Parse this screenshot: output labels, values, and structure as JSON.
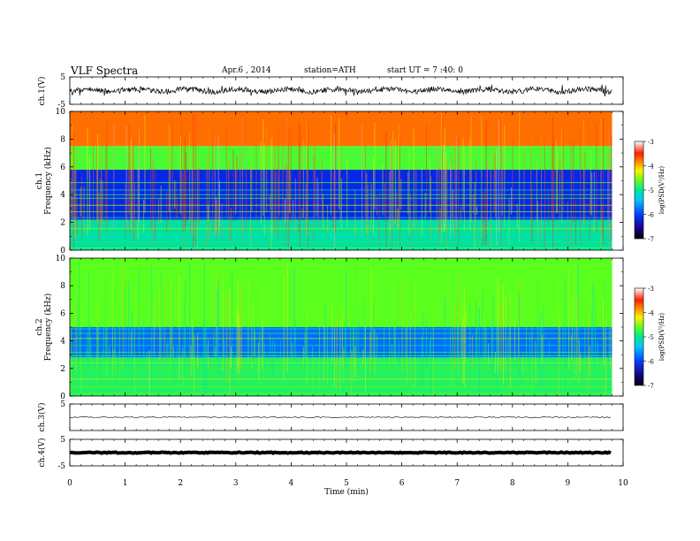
{
  "header": {
    "title": "VLF  Spectra",
    "date": "Apr.6  , 2014",
    "station": "station=ATH",
    "start": "start  UT  =   7 :40: 0"
  },
  "chart_data": [
    {
      "type": "line",
      "panel": "ch1-waveform",
      "ylabel": "ch.1(V)",
      "ylim": [
        -5,
        5
      ],
      "yticks": [
        "5",
        "-5"
      ],
      "x_range_min": [
        0,
        9.8
      ],
      "trace_level_v": 0.1
    },
    {
      "type": "heatmap",
      "panel": "ch1-spectrogram",
      "ylabel_channel": "ch.1",
      "ylabel": "Frequency  (kHz)",
      "ylim": [
        0,
        10
      ],
      "yticks": [
        "0",
        "2",
        "4",
        "6",
        "8",
        "10"
      ],
      "colorbar": {
        "label": "log(PSD(V²/Hz)",
        "range": [
          -7,
          -3
        ],
        "ticks": [
          "-3",
          "-4",
          "-5",
          "-6",
          "-7"
        ]
      },
      "bands": [
        {
          "from_khz": 0,
          "to_khz": 2.2,
          "log_psd": -5.6
        },
        {
          "from_khz": 2.2,
          "to_khz": 5.8,
          "log_psd": -6.6
        },
        {
          "from_khz": 5.8,
          "to_khz": 7.5,
          "log_psd": -5.1
        },
        {
          "from_khz": 7.5,
          "to_khz": 10,
          "log_psd": -3.9
        }
      ]
    },
    {
      "type": "heatmap",
      "panel": "ch2-spectrogram",
      "ylabel_channel": "ch.2",
      "ylabel": "Frequency  (kHz)",
      "ylim": [
        0,
        10
      ],
      "yticks": [
        "0",
        "2",
        "4",
        "6",
        "8",
        "10"
      ],
      "colorbar": {
        "label": "log(PSD(V²/Hz)",
        "range": [
          -7,
          -3
        ],
        "ticks": [
          "-3",
          "-4",
          "-5",
          "-6",
          "-7"
        ]
      },
      "bands": [
        {
          "from_khz": 0,
          "to_khz": 2.8,
          "log_psd": -5.3
        },
        {
          "from_khz": 2.8,
          "to_khz": 5.0,
          "log_psd": -6.3
        },
        {
          "from_khz": 5.0,
          "to_khz": 10,
          "log_psd": -5.0
        }
      ]
    },
    {
      "type": "line",
      "panel": "ch3-waveform",
      "ylabel": "ch.3(V)",
      "ylim": [
        -5,
        5
      ],
      "yticks": [
        "5"
      ],
      "trace_level_v": 0
    },
    {
      "type": "line",
      "panel": "ch4-waveform",
      "ylabel": "ch.4(V)",
      "ylim": [
        -5,
        5
      ],
      "yticks": [
        "5",
        "-5"
      ],
      "trace_level_v": 0
    }
  ],
  "x_axis": {
    "label": "Time  (min)",
    "ticks": [
      "0",
      "1",
      "2",
      "3",
      "4",
      "5",
      "6",
      "7",
      "8",
      "9",
      "10"
    ],
    "range": [
      0,
      10
    ],
    "data_end_min": 9.8
  }
}
